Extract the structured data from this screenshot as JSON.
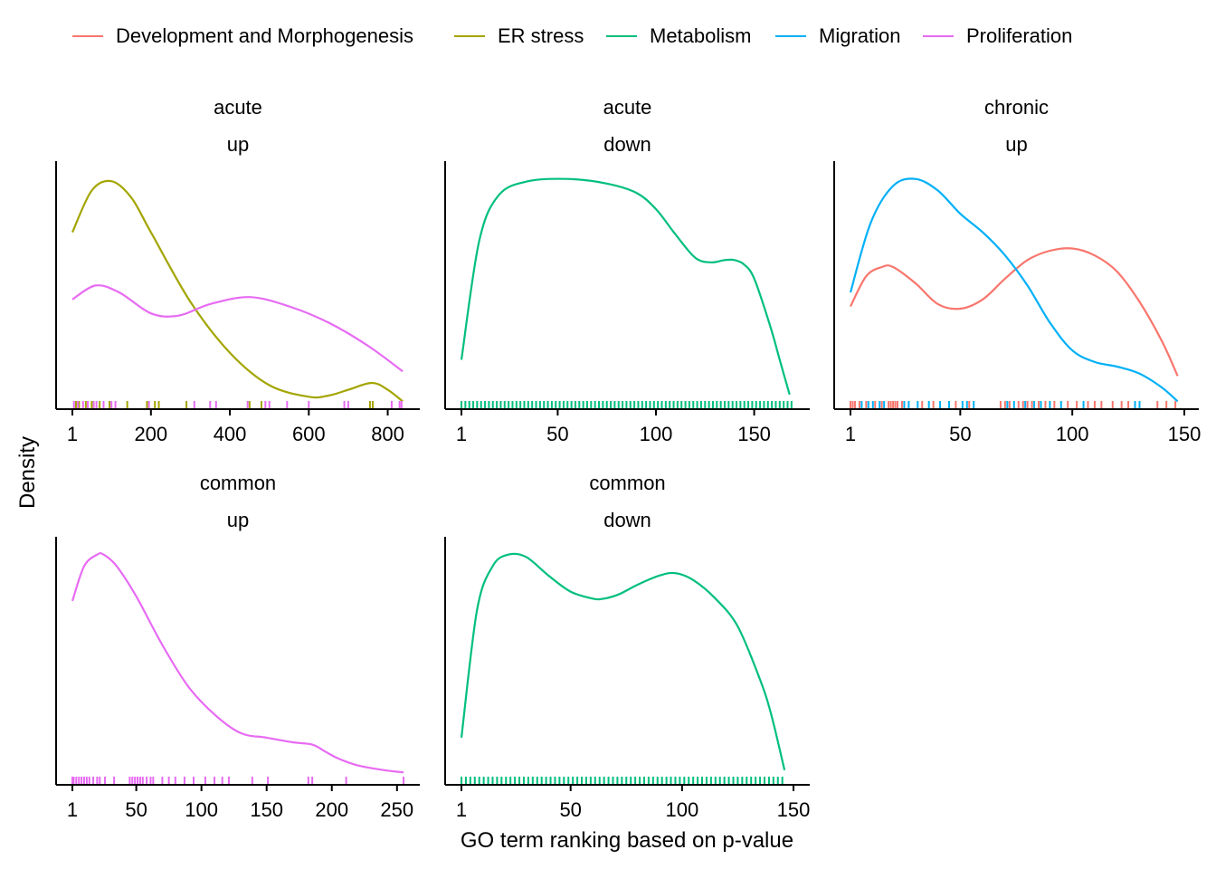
{
  "chart_data": {
    "type": "density",
    "xlabel": "GO term ranking based on p-value",
    "ylabel": "Density",
    "legend_position": "top",
    "legend": [
      {
        "name": "Development and Morphogenesis",
        "color": "#F8766D"
      },
      {
        "name": "ER stress",
        "color": "#A3A500"
      },
      {
        "name": "Metabolism",
        "color": "#00BF7D"
      },
      {
        "name": "Migration",
        "color": "#00B0F6"
      },
      {
        "name": "Proliferation",
        "color": "#E76BF3"
      }
    ],
    "panels": [
      {
        "strip": [
          "acute",
          "up"
        ],
        "xlim": [
          1,
          840
        ],
        "xticks": [
          1,
          200,
          400,
          600,
          800
        ],
        "ylim": [
          0,
          1
        ],
        "series": [
          {
            "name": "ER stress",
            "color": "#A3A500",
            "x": [
              1,
              50,
              100,
              150,
              200,
              300,
              400,
              500,
              600,
              650,
              700,
              760,
              800,
              838
            ],
            "y": [
              0.74,
              0.92,
              0.96,
              0.89,
              0.74,
              0.44,
              0.22,
              0.08,
              0.03,
              0.035,
              0.06,
              0.09,
              0.06,
              0.01
            ]
          },
          {
            "name": "Proliferation",
            "color": "#E76BF3",
            "x": [
              1,
              60,
              120,
              200,
              270,
              350,
              450,
              550,
              650,
              750,
              838
            ],
            "y": [
              0.45,
              0.51,
              0.48,
              0.39,
              0.38,
              0.43,
              0.46,
              0.42,
              0.35,
              0.25,
              0.14
            ]
          }
        ],
        "rug": [
          {
            "color": "#A3A500",
            "x": [
              10,
              18,
              35,
              50,
              70,
              95,
              140,
              190,
              210,
              220,
              290,
              450,
              480,
              755,
              762
            ]
          },
          {
            "color": "#E76BF3",
            "x": [
              5,
              15,
              28,
              40,
              55,
              62,
              80,
              100,
              110,
              195,
              310,
              350,
              365,
              445,
              490,
              500,
              545,
              600,
              690,
              700,
              810,
              830,
              835
            ]
          }
        ]
      },
      {
        "strip": [
          "acute",
          "down"
        ],
        "xlim": [
          1,
          170
        ],
        "xticks": [
          1,
          50,
          100,
          150
        ],
        "ylim": [
          0,
          1
        ],
        "series": [
          {
            "name": "Metabolism",
            "color": "#00BF7D",
            "x": [
              1,
              10,
              20,
              35,
              55,
              75,
              90,
              100,
              110,
              120,
              128,
              135,
              140,
              145,
              150,
              158,
              163,
              168
            ],
            "y": [
              0.19,
              0.7,
              0.9,
              0.96,
              0.97,
              0.95,
              0.91,
              0.84,
              0.73,
              0.63,
              0.61,
              0.62,
              0.62,
              0.6,
              0.54,
              0.34,
              0.19,
              0.04
            ]
          }
        ],
        "rug": [
          {
            "color": "#00BF7D",
            "x": [
              1,
              3,
              5,
              7,
              9,
              11,
              13,
              15,
              17,
              19,
              21,
              23,
              25,
              27,
              29,
              31,
              33,
              35,
              37,
              39,
              41,
              43,
              45,
              47,
              49,
              51,
              53,
              55,
              57,
              59,
              61,
              63,
              65,
              67,
              69,
              71,
              73,
              75,
              77,
              79,
              81,
              83,
              85,
              87,
              89,
              91,
              93,
              95,
              97,
              99,
              101,
              103,
              105,
              107,
              109,
              111,
              113,
              115,
              117,
              119,
              121,
              123,
              125,
              127,
              129,
              131,
              133,
              135,
              137,
              139,
              141,
              143,
              145,
              147,
              149,
              151,
              153,
              155,
              157,
              159,
              161,
              163,
              165,
              167,
              169
            ]
          }
        ]
      },
      {
        "strip": [
          "chronic",
          "up"
        ],
        "xlim": [
          1,
          150
        ],
        "xticks": [
          1,
          50,
          100,
          150
        ],
        "ylim": [
          0,
          1
        ],
        "series": [
          {
            "name": "Development and Morphogenesis",
            "color": "#F8766D",
            "x": [
              1,
              8,
              15,
              20,
              30,
              40,
              50,
              60,
              70,
              80,
              90,
              100,
              110,
              120,
              130,
              140,
              147
            ],
            "y": [
              0.42,
              0.55,
              0.59,
              0.59,
              0.52,
              0.43,
              0.41,
              0.45,
              0.54,
              0.62,
              0.66,
              0.67,
              0.64,
              0.57,
              0.44,
              0.27,
              0.12
            ]
          },
          {
            "name": "Migration",
            "color": "#00B0F6",
            "x": [
              1,
              10,
              20,
              30,
              40,
              50,
              60,
              70,
              80,
              90,
              100,
              110,
              120,
              130,
              140,
              147
            ],
            "y": [
              0.48,
              0.78,
              0.94,
              0.97,
              0.92,
              0.82,
              0.74,
              0.64,
              0.51,
              0.35,
              0.23,
              0.18,
              0.16,
              0.13,
              0.07,
              0.01
            ]
          }
        ],
        "rug": [
          {
            "color": "#F8766D",
            "x": [
              1,
              2,
              3,
              5,
              8,
              12,
              15,
              18,
              19,
              20,
              21,
              22,
              24,
              33,
              38,
              48,
              54,
              68,
              70,
              72,
              76,
              78,
              80,
              82,
              85,
              88,
              92,
              98,
              102,
              107,
              110,
              113,
              118,
              122,
              125,
              138,
              142,
              146
            ]
          },
          {
            "color": "#00B0F6",
            "x": [
              6,
              9,
              11,
              14,
              16,
              25,
              27,
              31,
              36,
              41,
              45,
              51,
              53,
              56,
              71,
              74,
              79,
              83,
              86,
              90,
              95,
              105,
              128,
              130
            ]
          }
        ]
      },
      {
        "strip": [
          "common",
          "up"
        ],
        "xlim": [
          1,
          255
        ],
        "xticks": [
          1,
          50,
          100,
          150,
          200,
          250
        ],
        "ylim": [
          0,
          1
        ],
        "series": [
          {
            "name": "Proliferation",
            "color": "#E76BF3",
            "x": [
              1,
              10,
              20,
              25,
              35,
              50,
              70,
              90,
              110,
              130,
              150,
              170,
              185,
              195,
              205,
              220,
              240,
              255
            ],
            "y": [
              0.77,
              0.92,
              0.97,
              0.97,
              0.92,
              0.79,
              0.58,
              0.4,
              0.28,
              0.2,
              0.18,
              0.16,
              0.15,
              0.12,
              0.09,
              0.06,
              0.04,
              0.03
            ]
          }
        ],
        "rug": [
          {
            "color": "#E76BF3",
            "x": [
              1,
              2,
              4,
              6,
              8,
              10,
              12,
              14,
              17,
              20,
              22,
              26,
              33,
              45,
              47,
              49,
              51,
              53,
              55,
              58,
              61,
              63,
              70,
              75,
              80,
              87,
              94,
              103,
              110,
              116,
              121,
              139,
              151,
              182,
              185,
              211,
              255
            ]
          }
        ]
      },
      {
        "strip": [
          "common",
          "down"
        ],
        "xlim": [
          1,
          150
        ],
        "xticks": [
          1,
          50,
          100,
          150
        ],
        "ylim": [
          0,
          1
        ],
        "series": [
          {
            "name": "Metabolism",
            "color": "#00BF7D",
            "x": [
              1,
              8,
              15,
              22,
              30,
              40,
              50,
              60,
              65,
              72,
              80,
              90,
              97,
              105,
              115,
              125,
              135,
              140,
              146
            ],
            "y": [
              0.18,
              0.73,
              0.92,
              0.97,
              0.96,
              0.88,
              0.81,
              0.78,
              0.78,
              0.8,
              0.84,
              0.88,
              0.89,
              0.86,
              0.78,
              0.66,
              0.43,
              0.28,
              0.04
            ]
          }
        ],
        "rug": [
          {
            "color": "#00BF7D",
            "x": [
              1,
              3,
              5,
              7,
              9,
              11,
              13,
              15,
              17,
              19,
              21,
              23,
              25,
              27,
              29,
              31,
              33,
              35,
              37,
              39,
              41,
              43,
              45,
              47,
              49,
              51,
              53,
              55,
              57,
              59,
              61,
              63,
              65,
              67,
              69,
              71,
              73,
              75,
              77,
              79,
              81,
              83,
              85,
              87,
              89,
              91,
              93,
              95,
              97,
              99,
              101,
              103,
              105,
              107,
              109,
              111,
              113,
              115,
              117,
              119,
              121,
              123,
              125,
              127,
              129,
              131,
              133,
              135,
              137,
              139,
              141,
              143,
              145
            ]
          }
        ]
      }
    ]
  }
}
